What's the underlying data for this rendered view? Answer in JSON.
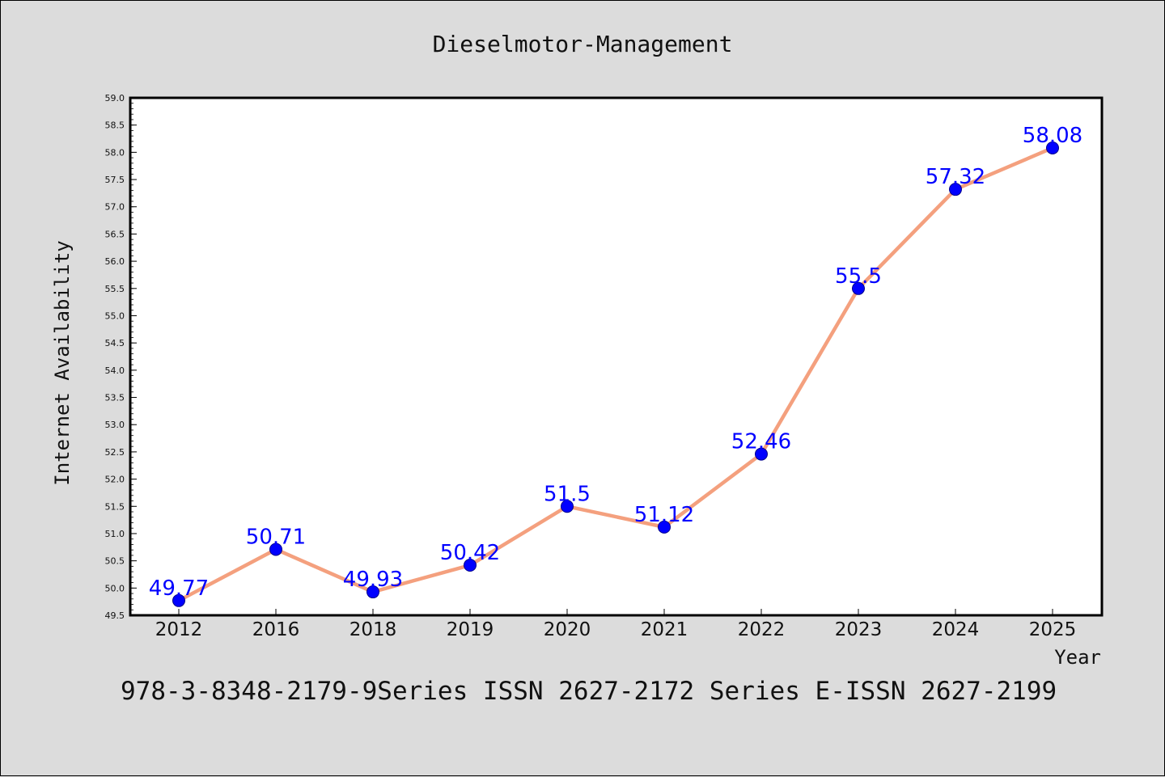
{
  "chart_data": {
    "type": "line",
    "title": "Dieselmotor-Management",
    "xlabel": "Year",
    "ylabel": "Internet Availability",
    "categories": [
      "2012",
      "2016",
      "2018",
      "2019",
      "2020",
      "2021",
      "2022",
      "2023",
      "2024",
      "2025"
    ],
    "series": [
      {
        "values": [
          49.77,
          50.71,
          49.93,
          50.42,
          51.5,
          51.12,
          52.46,
          55.5,
          57.32,
          58.08
        ],
        "data_labels": [
          "49.77",
          "50.71",
          "49.93",
          "50.42",
          "51.5",
          "51.12",
          "52.46",
          "55.5",
          "57.32",
          "58.08"
        ]
      }
    ],
    "yticks": [
      "49.5",
      "50.0",
      "50.5",
      "51.0",
      "51.5",
      "52.0",
      "52.5",
      "53.0",
      "53.5",
      "54.0",
      "54.5",
      "55.0",
      "55.5",
      "56.0",
      "56.5",
      "57.0",
      "57.5",
      "58.0",
      "58.5",
      "59.0"
    ],
    "ylim": [
      49.5,
      59.0
    ],
    "grid": false,
    "colors": {
      "line": "#f4a07e",
      "marker": "#0000ff",
      "marker_edge": "#00008b",
      "label": "#0000ff",
      "background": "#dcdcdc",
      "plot_background": "#ffffff"
    }
  },
  "footer": "978-3-8348-2179-9Series ISSN 2627-2172 Series E-ISSN 2627-2199"
}
